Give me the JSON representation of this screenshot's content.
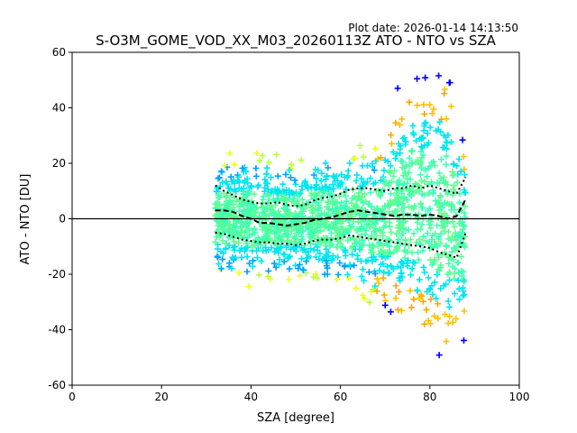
{
  "plot_date": "Plot date: 2026-01-14 14:13:50",
  "colors": {
    "background": "#ffffff",
    "axes": "#000000",
    "zero_line": "#000000",
    "point_palette": [
      "#0000ff",
      "#00a0ff",
      "#00e5ee",
      "#3fffb5",
      "#5cff90",
      "#b8ff3a",
      "#eeff1a",
      "#ffc000",
      "#ffa500"
    ]
  },
  "chart_data": {
    "type": "scatter",
    "title": "S-O3M_GOME_VOD_XX_M03_20260113Z ATO - NTO vs SZA",
    "xlabel": "SZA [degree]",
    "ylabel": "ATO - NTO [DU]",
    "xlim": [
      0,
      100
    ],
    "ylim": [
      -60,
      60
    ],
    "xticks": [
      0,
      20,
      40,
      60,
      80,
      100
    ],
    "yticks": [
      -60,
      -40,
      -20,
      0,
      20,
      40,
      60
    ],
    "grid": false,
    "legend": "none",
    "zero_line": 0,
    "marker": "plus",
    "scatter_envelope": {
      "x": [
        32,
        36,
        40,
        44,
        48,
        52,
        56,
        60,
        64,
        68,
        72,
        76,
        80,
        84,
        88
      ],
      "upper": [
        22,
        24,
        25,
        24,
        22,
        23,
        25,
        26,
        27,
        30,
        45,
        55,
        58,
        56,
        30
      ],
      "lower": [
        -22,
        -24,
        -25,
        -24,
        -23,
        -24,
        -25,
        -26,
        -27,
        -32,
        -38,
        -45,
        -50,
        -55,
        -45
      ]
    },
    "bin_mean": {
      "x": [
        32,
        34,
        36,
        38,
        40,
        42,
        44,
        46,
        48,
        50,
        52,
        54,
        56,
        58,
        60,
        62,
        64,
        66,
        68,
        70,
        72,
        74,
        76,
        78,
        80,
        82,
        84,
        86,
        88
      ],
      "y": [
        3,
        3,
        2.5,
        1,
        0,
        -1.5,
        -1.5,
        -2,
        -2.5,
        -2,
        -1.5,
        -0.5,
        0,
        0.5,
        1.5,
        2.5,
        3,
        2.5,
        2,
        1.5,
        1,
        1.5,
        1.5,
        1,
        1.5,
        1,
        0,
        1,
        7
      ]
    },
    "bin_mean_plus_sd": {
      "x": [
        32,
        34,
        36,
        38,
        40,
        42,
        44,
        46,
        48,
        50,
        52,
        54,
        56,
        58,
        60,
        62,
        64,
        66,
        68,
        70,
        72,
        74,
        76,
        78,
        80,
        82,
        84,
        86,
        88
      ],
      "y": [
        12,
        10,
        8.5,
        7,
        6,
        5.5,
        5.5,
        6,
        5,
        4.5,
        5,
        6.5,
        7.5,
        8,
        9,
        10.5,
        11,
        11,
        10.5,
        10,
        11,
        11,
        12,
        11,
        12,
        11,
        10,
        9,
        15
      ]
    },
    "bin_mean_minus_sd": {
      "x": [
        32,
        34,
        36,
        38,
        40,
        42,
        44,
        46,
        48,
        50,
        52,
        54,
        56,
        58,
        60,
        62,
        64,
        66,
        68,
        70,
        72,
        74,
        76,
        78,
        80,
        82,
        84,
        86,
        88
      ],
      "y": [
        -5,
        -5.5,
        -6.5,
        -7.5,
        -8,
        -8.5,
        -8.5,
        -9,
        -9,
        -9.5,
        -9,
        -8,
        -7.5,
        -7.5,
        -7,
        -6,
        -6.5,
        -7,
        -7.5,
        -8,
        -8.5,
        -9,
        -9.5,
        -10,
        -10.5,
        -12,
        -13,
        -14,
        -5
      ]
    }
  }
}
